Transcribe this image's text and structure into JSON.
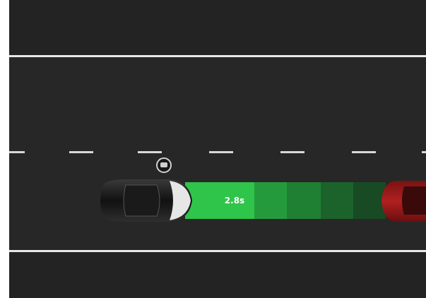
{
  "gap_indicator": {
    "time_label": "2.8s"
  }
}
